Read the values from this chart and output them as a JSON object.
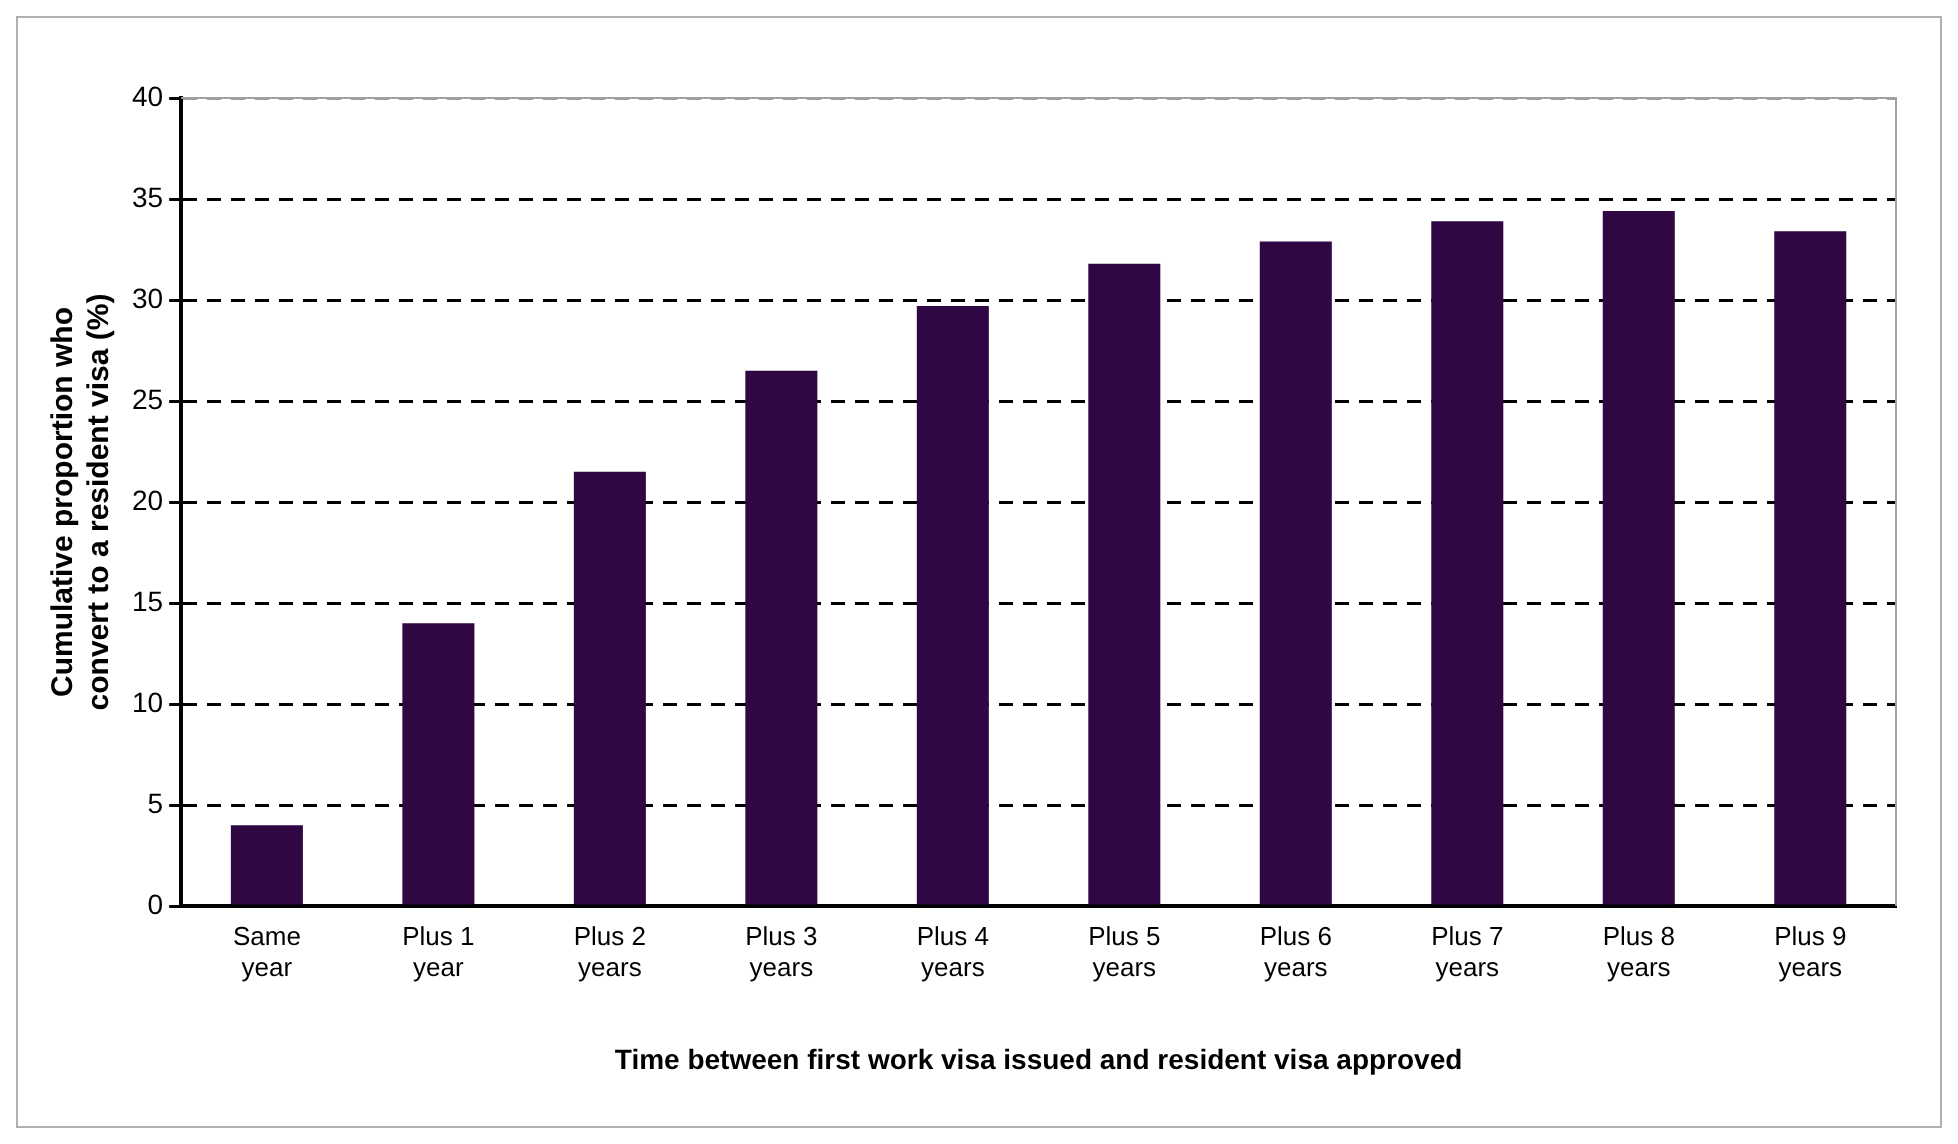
{
  "chart_data": {
    "type": "bar",
    "xlabel": "Time between first work visa issued and resident visa approved",
    "ylabel": "Cumulative proportion who convert to a resident visa (%)",
    "categories": [
      "Same year",
      "Plus 1 year",
      "Plus 2 years",
      "Plus 3 years",
      "Plus 4 years",
      "Plus 5 years",
      "Plus 6 years",
      "Plus 7 years",
      "Plus 8 years",
      "Plus 9 years"
    ],
    "values": [
      4.0,
      14.0,
      21.5,
      26.5,
      29.7,
      31.8,
      32.9,
      33.9,
      34.4,
      33.4
    ],
    "color": "#2e0743",
    "ylim": [
      0,
      40
    ],
    "yticks": [
      0,
      5,
      10,
      15,
      20,
      25,
      30,
      35,
      40
    ],
    "grid": "y",
    "legend": false
  }
}
